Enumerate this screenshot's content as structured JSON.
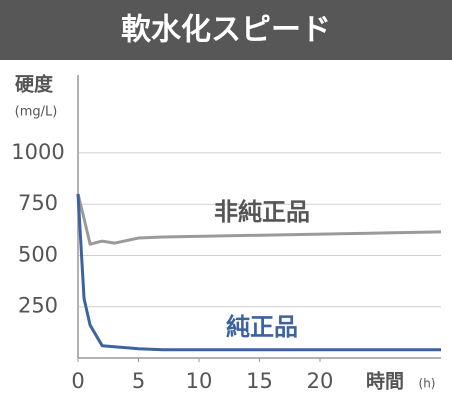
{
  "chart_data": {
    "type": "line",
    "title": "軟水化スピード",
    "y_label": "硬度",
    "y_unit": "(mg/L)",
    "x_label": "時間",
    "x_unit": "(h)",
    "x": [
      0,
      0.5,
      1,
      2,
      3,
      5,
      7,
      30
    ],
    "series": [
      {
        "name": "非純正品",
        "color": "#9a9a9a",
        "values": [
          800,
          680,
          555,
          570,
          560,
          585,
          590,
          615
        ]
      },
      {
        "name": "純正品",
        "color": "#3d62a0",
        "values": [
          800,
          290,
          160,
          60,
          55,
          45,
          40,
          40
        ]
      }
    ],
    "xlim": [
      0,
      30
    ],
    "ylim": [
      0,
      1380
    ],
    "xticks": [
      0,
      5,
      10,
      15,
      20
    ],
    "yticks": [
      250,
      500,
      750,
      1000
    ],
    "grid": true
  }
}
